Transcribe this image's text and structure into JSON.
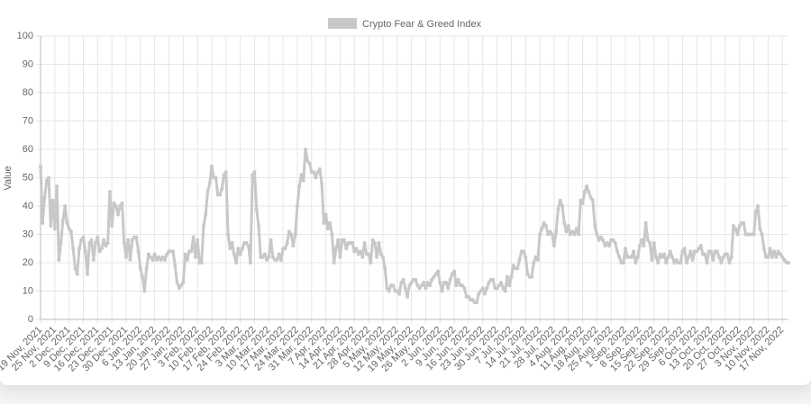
{
  "chart_data": {
    "type": "line",
    "y_label": "Value",
    "ylim": [
      0,
      100
    ],
    "yticks": [
      0,
      10,
      20,
      30,
      40,
      50,
      60,
      70,
      80,
      90,
      100
    ],
    "grid": true,
    "legend": "top",
    "categories": [
      "19 Nov, 2021",
      null,
      null,
      null,
      null,
      null,
      null,
      "25 Nov, 2021",
      null,
      null,
      null,
      null,
      null,
      null,
      "2 Dec, 2021",
      null,
      null,
      null,
      null,
      null,
      null,
      "9 Dec, 2021",
      null,
      null,
      null,
      null,
      null,
      null,
      "16 Dec, 2021",
      null,
      null,
      null,
      null,
      null,
      null,
      "23 Dec, 2021",
      null,
      null,
      null,
      null,
      null,
      null,
      "30 Dec, 2021",
      null,
      null,
      null,
      null,
      null,
      null,
      "6 Jan, 2022",
      null,
      null,
      null,
      null,
      null,
      null,
      "13 Jan, 2022",
      null,
      null,
      null,
      null,
      null,
      null,
      "20 Jan, 2022",
      null,
      null,
      null,
      null,
      null,
      null,
      "27 Jan, 2022",
      null,
      null,
      null,
      null,
      null,
      null,
      "3 Feb, 2022",
      null,
      null,
      null,
      null,
      null,
      null,
      "10 Feb, 2022",
      null,
      null,
      null,
      null,
      null,
      null,
      "17 Feb, 2022",
      null,
      null,
      null,
      null,
      null,
      null,
      "24 Feb, 2022",
      null,
      null,
      null,
      null,
      null,
      null,
      "3 Mar, 2022",
      null,
      null,
      null,
      null,
      null,
      null,
      "10 Mar, 2022",
      null,
      null,
      null,
      null,
      null,
      null,
      "17 Mar, 2022",
      null,
      null,
      null,
      null,
      null,
      null,
      "24 Mar, 2022",
      null,
      null,
      null,
      null,
      null,
      null,
      "31 Mar, 2022",
      null,
      null,
      null,
      null,
      null,
      null,
      "7 Apr, 2022",
      null,
      null,
      null,
      null,
      null,
      null,
      "14 Apr, 2022",
      null,
      null,
      null,
      null,
      null,
      null,
      "21 Apr, 2022",
      null,
      null,
      null,
      null,
      null,
      null,
      "28 Apr, 2022",
      null,
      null,
      null,
      null,
      null,
      null,
      "5 May, 2022",
      null,
      null,
      null,
      null,
      null,
      null,
      "12 May, 2022",
      null,
      null,
      null,
      null,
      null,
      null,
      "19 May, 2022",
      null,
      null,
      null,
      null,
      null,
      null,
      "26 May, 2022",
      null,
      null,
      null,
      null,
      null,
      null,
      "2 Jun, 2022",
      null,
      null,
      null,
      null,
      null,
      null,
      "9 Jun, 2022",
      null,
      null,
      null,
      null,
      null,
      null,
      "16 Jun, 2022",
      null,
      null,
      null,
      null,
      null,
      null,
      "23 Jun, 2022",
      null,
      null,
      null,
      null,
      null,
      null,
      "30 Jun, 2022",
      null,
      null,
      null,
      null,
      null,
      null,
      "7 Jul, 2022",
      null,
      null,
      null,
      null,
      null,
      null,
      "14 Jul, 2022",
      null,
      null,
      null,
      null,
      null,
      null,
      "21 Jul, 2022",
      null,
      null,
      null,
      null,
      null,
      null,
      "28 Jul, 2022",
      null,
      null,
      null,
      null,
      null,
      null,
      "4 Aug, 2022",
      null,
      null,
      null,
      null,
      null,
      null,
      "11 Aug, 2022",
      null,
      null,
      null,
      null,
      null,
      null,
      "18 Aug, 2022",
      null,
      null,
      null,
      null,
      null,
      null,
      "25 Aug, 2022",
      null,
      null,
      null,
      null,
      null,
      null,
      "1 Sep, 2022",
      null,
      null,
      null,
      null,
      null,
      null,
      "8 Sep, 2022",
      null,
      null,
      null,
      null,
      null,
      null,
      "15 Sep, 2022",
      null,
      null,
      null,
      null,
      null,
      null,
      "22 Sep, 2022",
      null,
      null,
      null,
      null,
      null,
      null,
      "29 Sep, 2022",
      null,
      null,
      null,
      null,
      null,
      null,
      "6 Oct, 2022",
      null,
      null,
      null,
      null,
      null,
      null,
      "13 Oct, 2022",
      null,
      null,
      null,
      null,
      null,
      null,
      "20 Oct, 2022",
      null,
      null,
      null,
      null,
      null,
      null,
      "27 Oct, 2022",
      null,
      null,
      null,
      null,
      null,
      null,
      "3 Nov, 2022",
      null,
      null,
      null,
      null,
      null,
      null,
      "10 Nov, 2022",
      null,
      null,
      null,
      null,
      null,
      null,
      "17 Nov, 2022",
      null,
      null,
      null
    ],
    "series": [
      {
        "name": "Crypto Fear & Greed Index",
        "color": "#c8c8c8",
        "values": [
          54,
          34,
          43,
          49,
          50,
          33,
          42,
          32,
          47,
          21,
          27,
          35,
          40,
          34,
          32,
          31,
          25,
          18,
          16,
          25,
          28,
          29,
          24,
          16,
          27,
          28,
          21,
          27,
          29,
          24,
          25,
          28,
          26,
          27,
          45,
          33,
          41,
          40,
          37,
          40,
          41,
          27,
          22,
          28,
          21,
          28,
          29,
          29,
          24,
          18,
          15,
          10,
          18,
          23,
          22,
          21,
          23,
          21,
          22,
          21,
          22,
          21,
          23,
          24,
          24,
          24,
          19,
          13,
          11,
          12,
          13,
          23,
          21,
          24,
          24,
          29,
          22,
          28,
          20,
          20,
          33,
          37,
          45,
          48,
          54,
          50,
          50,
          44,
          44,
          46,
          51,
          52,
          30,
          25,
          27,
          23,
          20,
          25,
          23,
          25,
          27,
          27,
          26,
          20,
          51,
          52,
          39,
          33,
          22,
          22,
          23,
          21,
          22,
          28,
          22,
          21,
          21,
          23,
          21,
          25,
          25,
          27,
          31,
          30,
          26,
          30,
          40,
          47,
          51,
          49,
          60,
          56,
          55,
          52,
          52,
          50,
          52,
          53,
          48,
          34,
          37,
          32,
          34,
          30,
          20,
          25,
          28,
          22,
          28,
          28,
          25,
          27,
          27,
          27,
          24,
          25,
          23,
          24,
          22,
          27,
          23,
          23,
          20,
          28,
          27,
          22,
          27,
          23,
          22,
          18,
          11,
          10,
          12,
          12,
          10,
          10,
          9,
          13,
          14,
          11,
          8,
          12,
          13,
          14,
          14,
          12,
          11,
          12,
          13,
          11,
          13,
          12,
          14,
          15,
          16,
          17,
          13,
          10,
          13,
          13,
          11,
          14,
          16,
          17,
          12,
          14,
          12,
          12,
          11,
          8,
          8,
          7,
          7,
          6,
          6,
          9,
          10,
          11,
          9,
          11,
          13,
          14,
          14,
          11,
          11,
          12,
          13,
          11,
          10,
          15,
          12,
          15,
          19,
          18,
          18,
          21,
          24,
          24,
          22,
          16,
          15,
          15,
          20,
          22,
          21,
          30,
          32,
          34,
          33,
          30,
          31,
          30,
          26,
          31,
          39,
          42,
          40,
          34,
          31,
          33,
          30,
          31,
          30,
          32,
          30,
          42,
          41,
          45,
          47,
          45,
          43,
          42,
          33,
          30,
          28,
          29,
          28,
          26,
          27,
          26,
          28,
          28,
          27,
          24,
          22,
          20,
          20,
          25,
          22,
          22,
          22,
          24,
          20,
          22,
          26,
          28,
          26,
          34,
          28,
          27,
          21,
          27,
          22,
          20,
          23,
          22,
          23,
          20,
          22,
          24,
          22,
          20,
          21,
          20,
          20,
          24,
          25,
          20,
          22,
          24,
          21,
          24,
          24,
          25,
          26,
          23,
          23,
          20,
          24,
          24,
          21,
          24,
          24,
          22,
          20,
          22,
          23,
          23,
          20,
          22,
          33,
          32,
          30,
          33,
          34,
          34,
          30,
          30,
          30,
          30,
          30,
          38,
          40,
          32,
          30,
          25,
          22,
          22,
          25,
          22,
          24,
          22,
          24,
          23,
          22,
          21,
          20,
          20
        ]
      }
    ]
  }
}
